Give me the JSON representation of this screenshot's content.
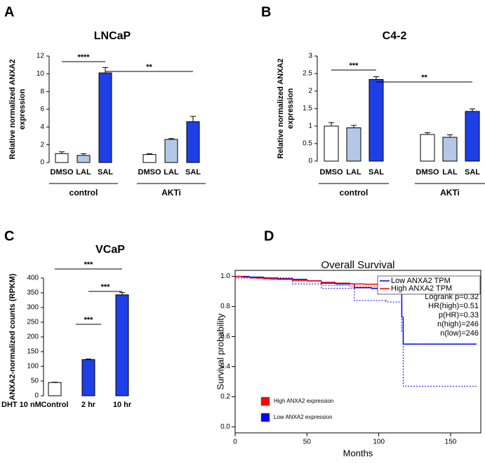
{
  "chart_data": [
    {
      "type": "bar",
      "panel": "A",
      "title": "LNCaP",
      "ylabel": [
        "Relative normalized ANXA2",
        "expression"
      ],
      "ylim": [
        0,
        12
      ],
      "yticks": [
        0,
        2,
        4,
        6,
        8,
        10,
        12
      ],
      "colors": [
        "#ffffff",
        "#b4c7e7",
        "#1f3fe6"
      ],
      "groups": [
        {
          "label": "control",
          "categories": [
            "DMSO",
            "LAL",
            "SAL"
          ],
          "values": [
            1.0,
            0.8,
            10.1
          ],
          "errors": [
            0.2,
            0.2,
            0.6
          ]
        },
        {
          "label": "AKTi",
          "categories": [
            "DMSO",
            "LAL",
            "SAL"
          ],
          "values": [
            0.9,
            2.6,
            4.6
          ],
          "errors": [
            0.1,
            0.1,
            0.6
          ]
        }
      ],
      "annotations": [
        "****",
        "**"
      ]
    },
    {
      "type": "bar",
      "panel": "B",
      "title": "C4-2",
      "ylabel": [
        "Relative normalized ANXA2",
        "expression"
      ],
      "ylim": [
        0,
        3
      ],
      "yticks": [
        0,
        0.5,
        1,
        1.5,
        2,
        2.5,
        3
      ],
      "colors": [
        "#ffffff",
        "#b4c7e7",
        "#1f3fe6"
      ],
      "groups": [
        {
          "label": "control",
          "categories": [
            "DMSO",
            "LAL",
            "SAL"
          ],
          "values": [
            1.0,
            0.95,
            2.33
          ],
          "errors": [
            0.1,
            0.07,
            0.08
          ]
        },
        {
          "label": "AKTi",
          "categories": [
            "DMSO",
            "LAL",
            "SAL"
          ],
          "values": [
            0.76,
            0.68,
            1.42
          ],
          "errors": [
            0.05,
            0.07,
            0.07
          ]
        }
      ],
      "annotations": [
        "***",
        "**"
      ]
    },
    {
      "type": "bar",
      "panel": "C",
      "title": "VCaP",
      "ylabel": [
        "ANXA2-normalized counts (RPKM)"
      ],
      "xlabel": "DHT 10 nM",
      "ylim": [
        0,
        400
      ],
      "yticks": [
        0,
        50,
        100,
        150,
        200,
        250,
        300,
        350,
        400
      ],
      "colors": [
        "#ffffff",
        "#1f3fe6",
        "#1f3fe6"
      ],
      "groups": [
        {
          "categories": [
            "Control",
            "2 hr",
            "10 hr"
          ],
          "values": [
            45,
            123,
            343
          ],
          "errors": [
            1,
            2,
            8
          ]
        }
      ],
      "annotations": [
        "***",
        "***",
        "***"
      ]
    },
    {
      "type": "step",
      "panel": "D",
      "title": "Overall Survival",
      "xlabel": "Months",
      "ylabel": "Survival probability",
      "xlim": [
        0,
        171
      ],
      "xticks": [
        0,
        50,
        100,
        150
      ],
      "ylim": [
        -0.04,
        1.04
      ],
      "yticks": [
        {
          "value": 0,
          "label": "0.0"
        },
        0.2,
        0.4,
        0.6,
        0.8,
        {
          "value": 1,
          "label": "1.0"
        }
      ],
      "series": [
        {
          "name": "Low ANXA2 TPM",
          "color": "#0000ff",
          "x": [
            0,
            10,
            20,
            30,
            40,
            50,
            60,
            70,
            83,
            95,
            105,
            116,
            117,
            130,
            150,
            168
          ],
          "values": [
            1.0,
            0.995,
            0.99,
            0.985,
            0.98,
            0.97,
            0.955,
            0.95,
            0.925,
            0.92,
            0.91,
            0.73,
            0.55,
            0.55,
            0.55,
            0.55
          ]
        },
        {
          "name": "High ANXA2 TPM",
          "color": "#ff0000",
          "x": [
            0,
            5,
            10,
            15,
            20,
            25,
            30,
            40,
            50,
            60,
            70,
            80,
            90,
            100,
            110,
            120,
            140,
            160,
            170
          ],
          "values": [
            1.0,
            0.995,
            0.99,
            0.988,
            0.985,
            0.982,
            0.98,
            0.975,
            0.97,
            0.96,
            0.955,
            0.95,
            0.948,
            0.945,
            0.943,
            0.943,
            0.943,
            0.943,
            0.943
          ]
        },
        {
          "color": "#0000ff",
          "style": "dotted",
          "x": [
            0,
            40,
            60,
            83,
            105,
            116,
            117,
            168
          ],
          "values": [
            0.99,
            0.95,
            0.92,
            0.84,
            0.83,
            0.63,
            0.27,
            0.27
          ]
        },
        {
          "color": "#ff0000",
          "style": "dotted",
          "x": [
            0,
            40,
            60,
            80,
            100,
            140,
            170
          ],
          "values": [
            0.99,
            0.97,
            0.94,
            0.93,
            0.92,
            0.92,
            0.92
          ]
        }
      ],
      "stats": [
        "Logrank p=0.32",
        "HR(high)=0.51",
        "p(HR)=0.33",
        "n(high)=246",
        "n(low)=246"
      ],
      "group_legend": [
        {
          "text": "High ANXA2 expression",
          "color": "#ff0000"
        },
        {
          "text": "Low ANXA2 expression",
          "color": "#0000ff"
        }
      ]
    }
  ]
}
